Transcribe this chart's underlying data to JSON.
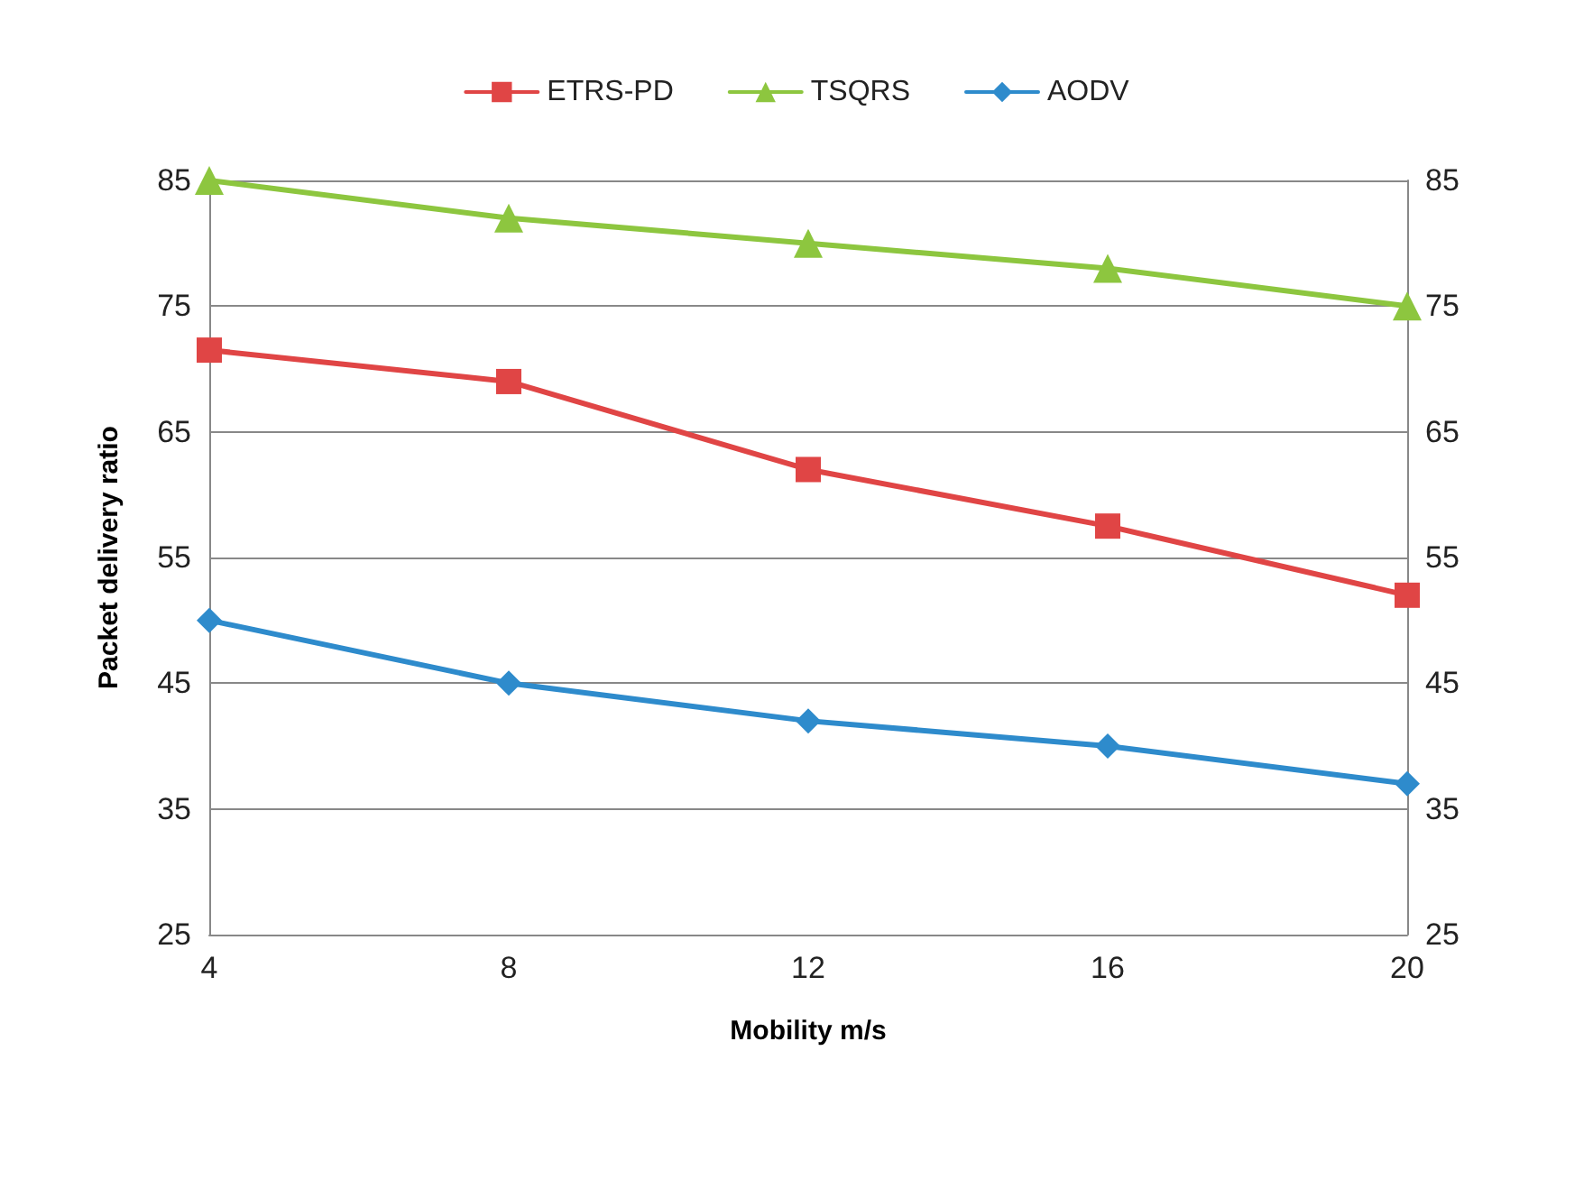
{
  "chart_data": {
    "type": "line",
    "xlabel": "Mobility m/s",
    "ylabel": "Packet delivery ratio",
    "x": [
      4,
      8,
      12,
      16,
      20
    ],
    "series": [
      {
        "name": "ETRS-PD",
        "color": "#e04545",
        "marker": "square",
        "values": [
          71.5,
          69,
          62,
          57.5,
          52
        ]
      },
      {
        "name": "TSQRS",
        "color": "#8dc63f",
        "marker": "triangle",
        "values": [
          85,
          82,
          80,
          78,
          75
        ]
      },
      {
        "name": "AODV",
        "color": "#2e8bcc",
        "marker": "diamond",
        "values": [
          50,
          45,
          42,
          40,
          37
        ]
      }
    ],
    "xlim": [
      4,
      20
    ],
    "xticks": [
      4,
      8,
      12,
      16,
      20
    ],
    "ylim": [
      25,
      85
    ],
    "yticks": [
      25,
      35,
      45,
      55,
      65,
      75,
      85
    ],
    "y2lim": [
      25,
      85
    ],
    "y2ticks": [
      25,
      35,
      45,
      55,
      65,
      75,
      85
    ],
    "grid": "y",
    "legend": "top"
  }
}
